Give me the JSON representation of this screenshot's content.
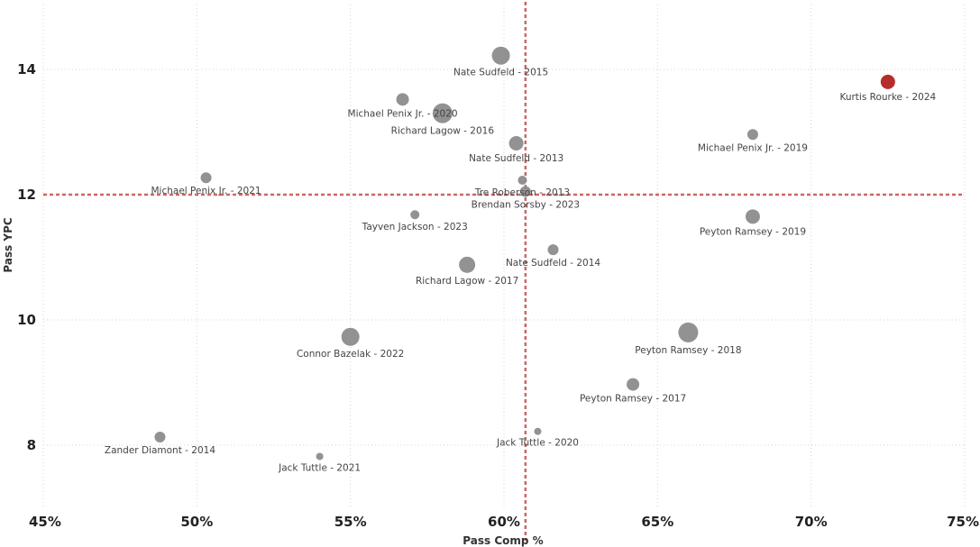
{
  "chart_data": {
    "type": "scatter",
    "xlabel": "Pass Comp %",
    "ylabel": "Pass YPC",
    "xlim": [
      45,
      75
    ],
    "ylim": [
      7,
      15
    ],
    "x_ticks": [
      45,
      50,
      55,
      60,
      65,
      70,
      75
    ],
    "x_tick_labels": [
      "45%",
      "50%",
      "55%",
      "60%",
      "65%",
      "70%",
      "75%"
    ],
    "y_ticks": [
      8,
      10,
      12,
      14
    ],
    "y_tick_labels": [
      "8",
      "10",
      "12",
      "14"
    ],
    "reference_lines": {
      "x": 60.7,
      "y": 12.0
    },
    "colors": {
      "default": "#8c8c8c",
      "highlight": "#b22222",
      "refline": "#c0504d"
    },
    "points": [
      {
        "label": "Nate Sudfeld - 2015",
        "x": 59.9,
        "y": 14.22,
        "size": 10
      },
      {
        "label": "Kurtis Rourke - 2024",
        "x": 72.5,
        "y": 13.8,
        "size": 8,
        "highlight": true
      },
      {
        "label": "Michael Penix Jr. - 2020",
        "x": 56.7,
        "y": 13.52,
        "size": 7
      },
      {
        "label": "Richard Lagow - 2016",
        "x": 58.0,
        "y": 13.3,
        "size": 11
      },
      {
        "label": "Michael Penix Jr. - 2019",
        "x": 68.1,
        "y": 12.96,
        "size": 6
      },
      {
        "label": "Nate Sudfeld - 2013",
        "x": 60.4,
        "y": 12.82,
        "size": 8
      },
      {
        "label": "Michael Penix Jr. - 2021",
        "x": 50.3,
        "y": 12.27,
        "size": 6
      },
      {
        "label": "Tre Roberson - 2013",
        "x": 60.6,
        "y": 12.23,
        "size": 5
      },
      {
        "label": "Brendan Sorsby - 2023",
        "x": 60.7,
        "y": 12.05,
        "size": 6
      },
      {
        "label": "Tayven Jackson - 2023",
        "x": 57.1,
        "y": 11.68,
        "size": 5
      },
      {
        "label": "Peyton Ramsey - 2019",
        "x": 68.1,
        "y": 11.65,
        "size": 8
      },
      {
        "label": "Nate Sudfeld - 2014",
        "x": 61.6,
        "y": 11.12,
        "size": 6
      },
      {
        "label": "Richard Lagow - 2017",
        "x": 58.8,
        "y": 10.88,
        "size": 9
      },
      {
        "label": "Peyton Ramsey - 2018",
        "x": 66.0,
        "y": 9.8,
        "size": 11
      },
      {
        "label": "Connor Bazelak - 2022",
        "x": 55.0,
        "y": 9.73,
        "size": 10
      },
      {
        "label": "Peyton Ramsey - 2017",
        "x": 64.2,
        "y": 8.97,
        "size": 7
      },
      {
        "label": "Jack Tuttle - 2020",
        "x": 61.1,
        "y": 8.22,
        "size": 4
      },
      {
        "label": "Zander Diamont - 2014",
        "x": 48.8,
        "y": 8.13,
        "size": 6
      },
      {
        "label": "Jack Tuttle - 2021",
        "x": 54.0,
        "y": 7.82,
        "size": 4
      }
    ]
  }
}
